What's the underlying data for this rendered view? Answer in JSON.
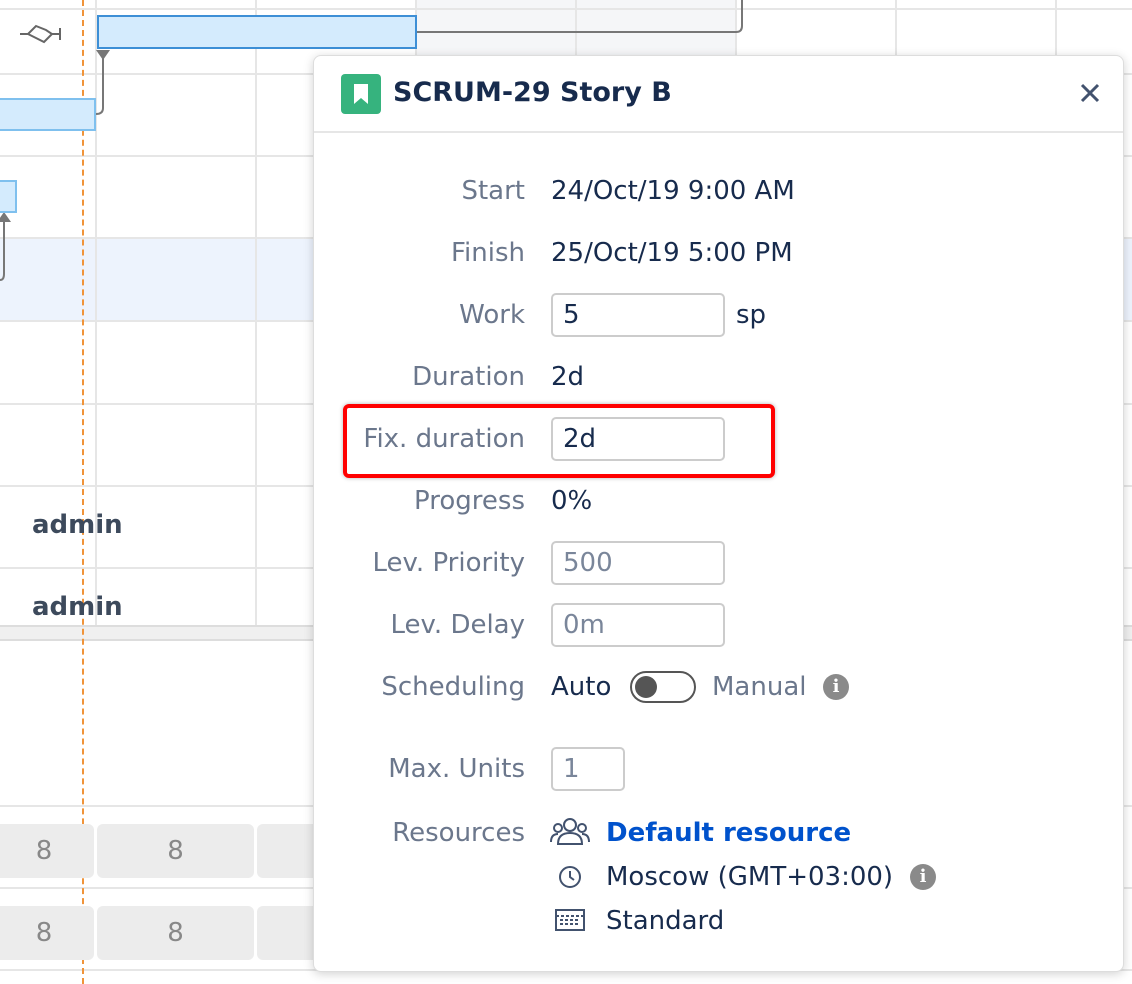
{
  "gantt": {
    "assignees": [
      "admin",
      "admin"
    ],
    "hours": [
      [
        "8",
        "8"
      ],
      [
        "8",
        "8"
      ]
    ]
  },
  "popup": {
    "title": "SCRUM-29 Story B",
    "start": {
      "label": "Start",
      "value": "24/Oct/19 9:00 AM"
    },
    "finish": {
      "label": "Finish",
      "value": "25/Oct/19 5:00 PM"
    },
    "work": {
      "label": "Work",
      "value": "5",
      "unit": "sp"
    },
    "duration": {
      "label": "Duration",
      "value": "2d"
    },
    "fix_duration": {
      "label": "Fix. duration",
      "value": "2d"
    },
    "progress": {
      "label": "Progress",
      "value": "0%"
    },
    "lev_priority": {
      "label": "Lev. Priority",
      "value": "500"
    },
    "lev_delay": {
      "label": "Lev. Delay",
      "value": "0m"
    },
    "scheduling": {
      "label": "Scheduling",
      "auto": "Auto",
      "manual": "Manual"
    },
    "max_units": {
      "label": "Max. Units",
      "value": "1"
    },
    "resources": {
      "label": "Resources",
      "resource": "Default resource",
      "timezone": "Moscow (GMT+03:00)",
      "calendar": "Standard"
    }
  }
}
